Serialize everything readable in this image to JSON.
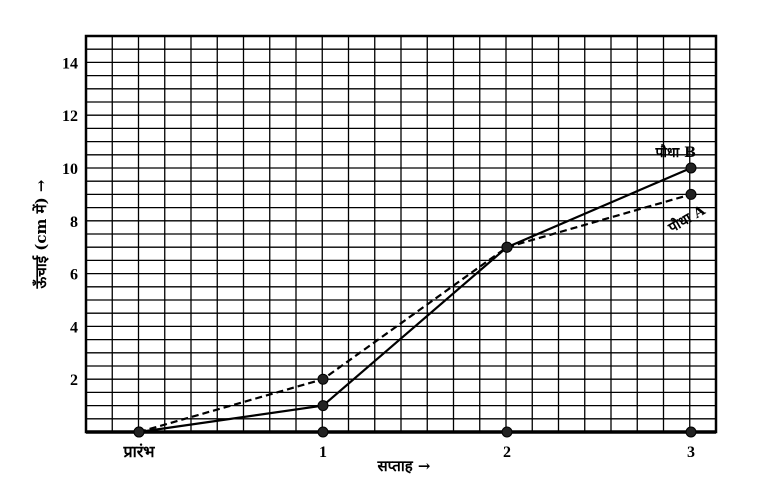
{
  "chart_data": {
    "type": "line",
    "title": "",
    "xlabel": "सप्ताह →",
    "ylabel": "ऊँचाई (cm में) →",
    "categories": [
      "प्रारंभ",
      "1",
      "2",
      "3"
    ],
    "x": [
      0,
      1,
      2,
      3
    ],
    "ylim": [
      0,
      15
    ],
    "yticks": [
      2,
      4,
      6,
      8,
      10,
      12,
      14
    ],
    "grid": true,
    "series": [
      {
        "name": "पौधा A",
        "style": "dashed",
        "values": [
          0,
          2,
          7,
          9
        ]
      },
      {
        "name": "पौधा B",
        "style": "solid",
        "values": [
          0,
          1,
          7,
          10
        ]
      }
    ],
    "baseline_markers": [
      1,
      2,
      3
    ]
  }
}
